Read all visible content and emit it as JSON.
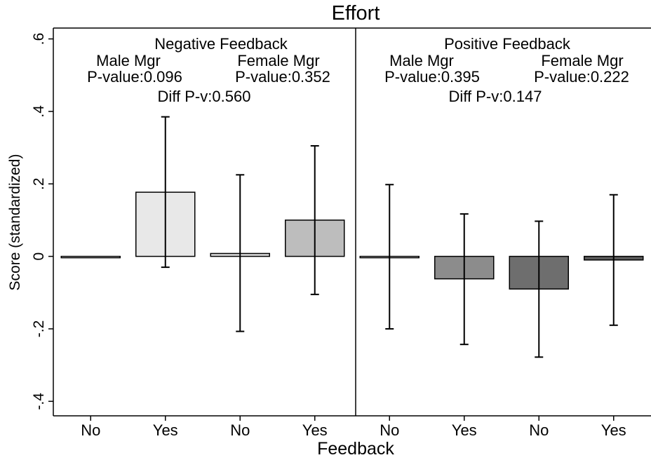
{
  "chart_data": {
    "type": "bar",
    "title": "Effort",
    "xlabel": "Feedback",
    "ylabel": "Score (standardized)",
    "ylim": [
      -0.44,
      0.63
    ],
    "yticks": [
      {
        "value": 0.6,
        "label": ".6"
      },
      {
        "value": 0.4,
        "label": ".4"
      },
      {
        "value": 0.2,
        "label": ".2"
      },
      {
        "value": 0,
        "label": "0"
      },
      {
        "value": -0.2,
        "label": "-.2"
      },
      {
        "value": -0.4,
        "label": "-.4"
      }
    ],
    "grid": false,
    "categories": [
      "No",
      "Yes",
      "No",
      "Yes",
      "No",
      "Yes",
      "No",
      "Yes"
    ],
    "panels": [
      {
        "title": "Negative Feedback",
        "groups": [
          {
            "label": "Male Mgr",
            "pvalue": "P-value:0.096"
          },
          {
            "label": "Female Mgr",
            "pvalue": "P-value:0.352"
          }
        ],
        "diff": "Diff P-v:0.560",
        "bars": [
          {
            "category": "No",
            "value": 0.0,
            "ci_low": 0.0,
            "ci_high": 0.0,
            "color": "#ffffff"
          },
          {
            "category": "Yes",
            "value": 0.177,
            "ci_low": -0.03,
            "ci_high": 0.385,
            "color": "#e8e8e8"
          },
          {
            "category": "No",
            "value": 0.008,
            "ci_low": -0.207,
            "ci_high": 0.225,
            "color": "#dcdcdc"
          },
          {
            "category": "Yes",
            "value": 0.1,
            "ci_low": -0.105,
            "ci_high": 0.305,
            "color": "#bdbdbd"
          }
        ]
      },
      {
        "title": "Positive Feedback",
        "groups": [
          {
            "label": "Male Mgr",
            "pvalue": "P-value:0.395"
          },
          {
            "label": "Female Mgr",
            "pvalue": "P-value:0.222"
          }
        ],
        "diff": "Diff P-v:0.147",
        "bars": [
          {
            "category": "No",
            "value": 0.0,
            "ci_low": -0.2,
            "ci_high": 0.198,
            "color": "#ffffff"
          },
          {
            "category": "Yes",
            "value": -0.062,
            "ci_low": -0.243,
            "ci_high": 0.117,
            "color": "#8c8c8c"
          },
          {
            "category": "No",
            "value": -0.09,
            "ci_low": -0.278,
            "ci_high": 0.097,
            "color": "#6e6e6e"
          },
          {
            "category": "Yes",
            "value": -0.01,
            "ci_low": -0.19,
            "ci_high": 0.17,
            "color": "#5a5a5a"
          }
        ]
      }
    ]
  }
}
